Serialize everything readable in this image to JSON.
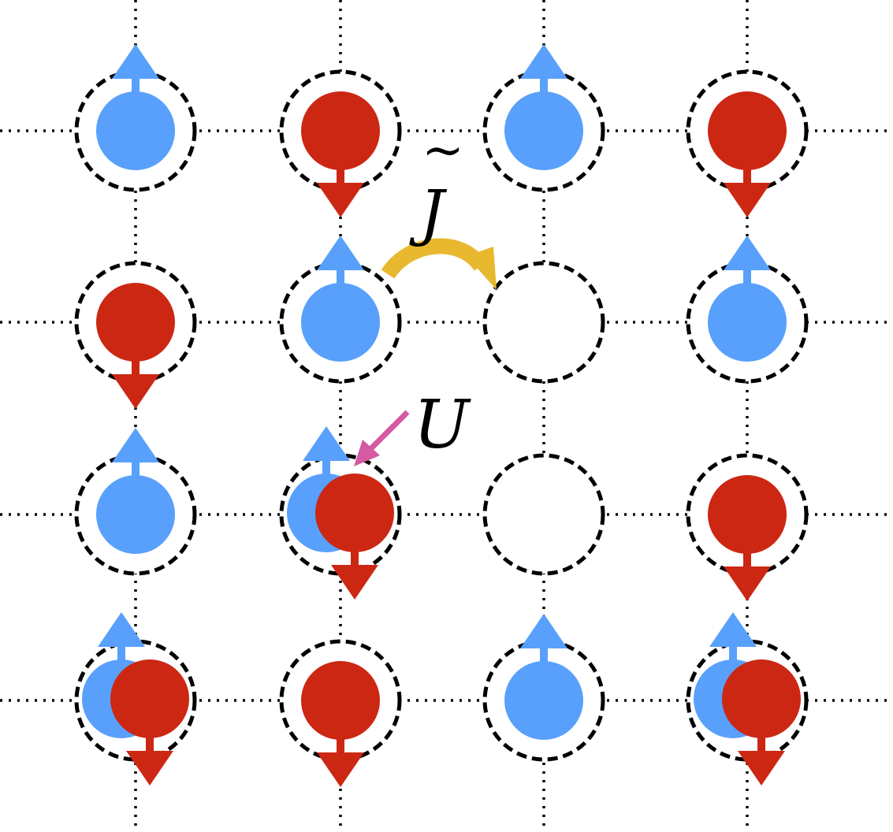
{
  "diagram": {
    "labels": {
      "hopping": "J",
      "hopping_accent": "~",
      "interaction": "U"
    },
    "colors": {
      "spin_up": "#58a0fb",
      "spin_down": "#cc2713",
      "hop_arrow": "#e8b82f",
      "interaction_arrow": "#d45aa4",
      "lattice": "#000000"
    },
    "lattice": {
      "rows": 4,
      "cols": 4,
      "occupancy": [
        [
          "up",
          "down",
          "up",
          "down"
        ],
        [
          "down",
          "up",
          "empty",
          "up"
        ],
        [
          "up",
          "double",
          "empty",
          "down"
        ],
        [
          "double",
          "down",
          "up",
          "double"
        ]
      ]
    }
  }
}
